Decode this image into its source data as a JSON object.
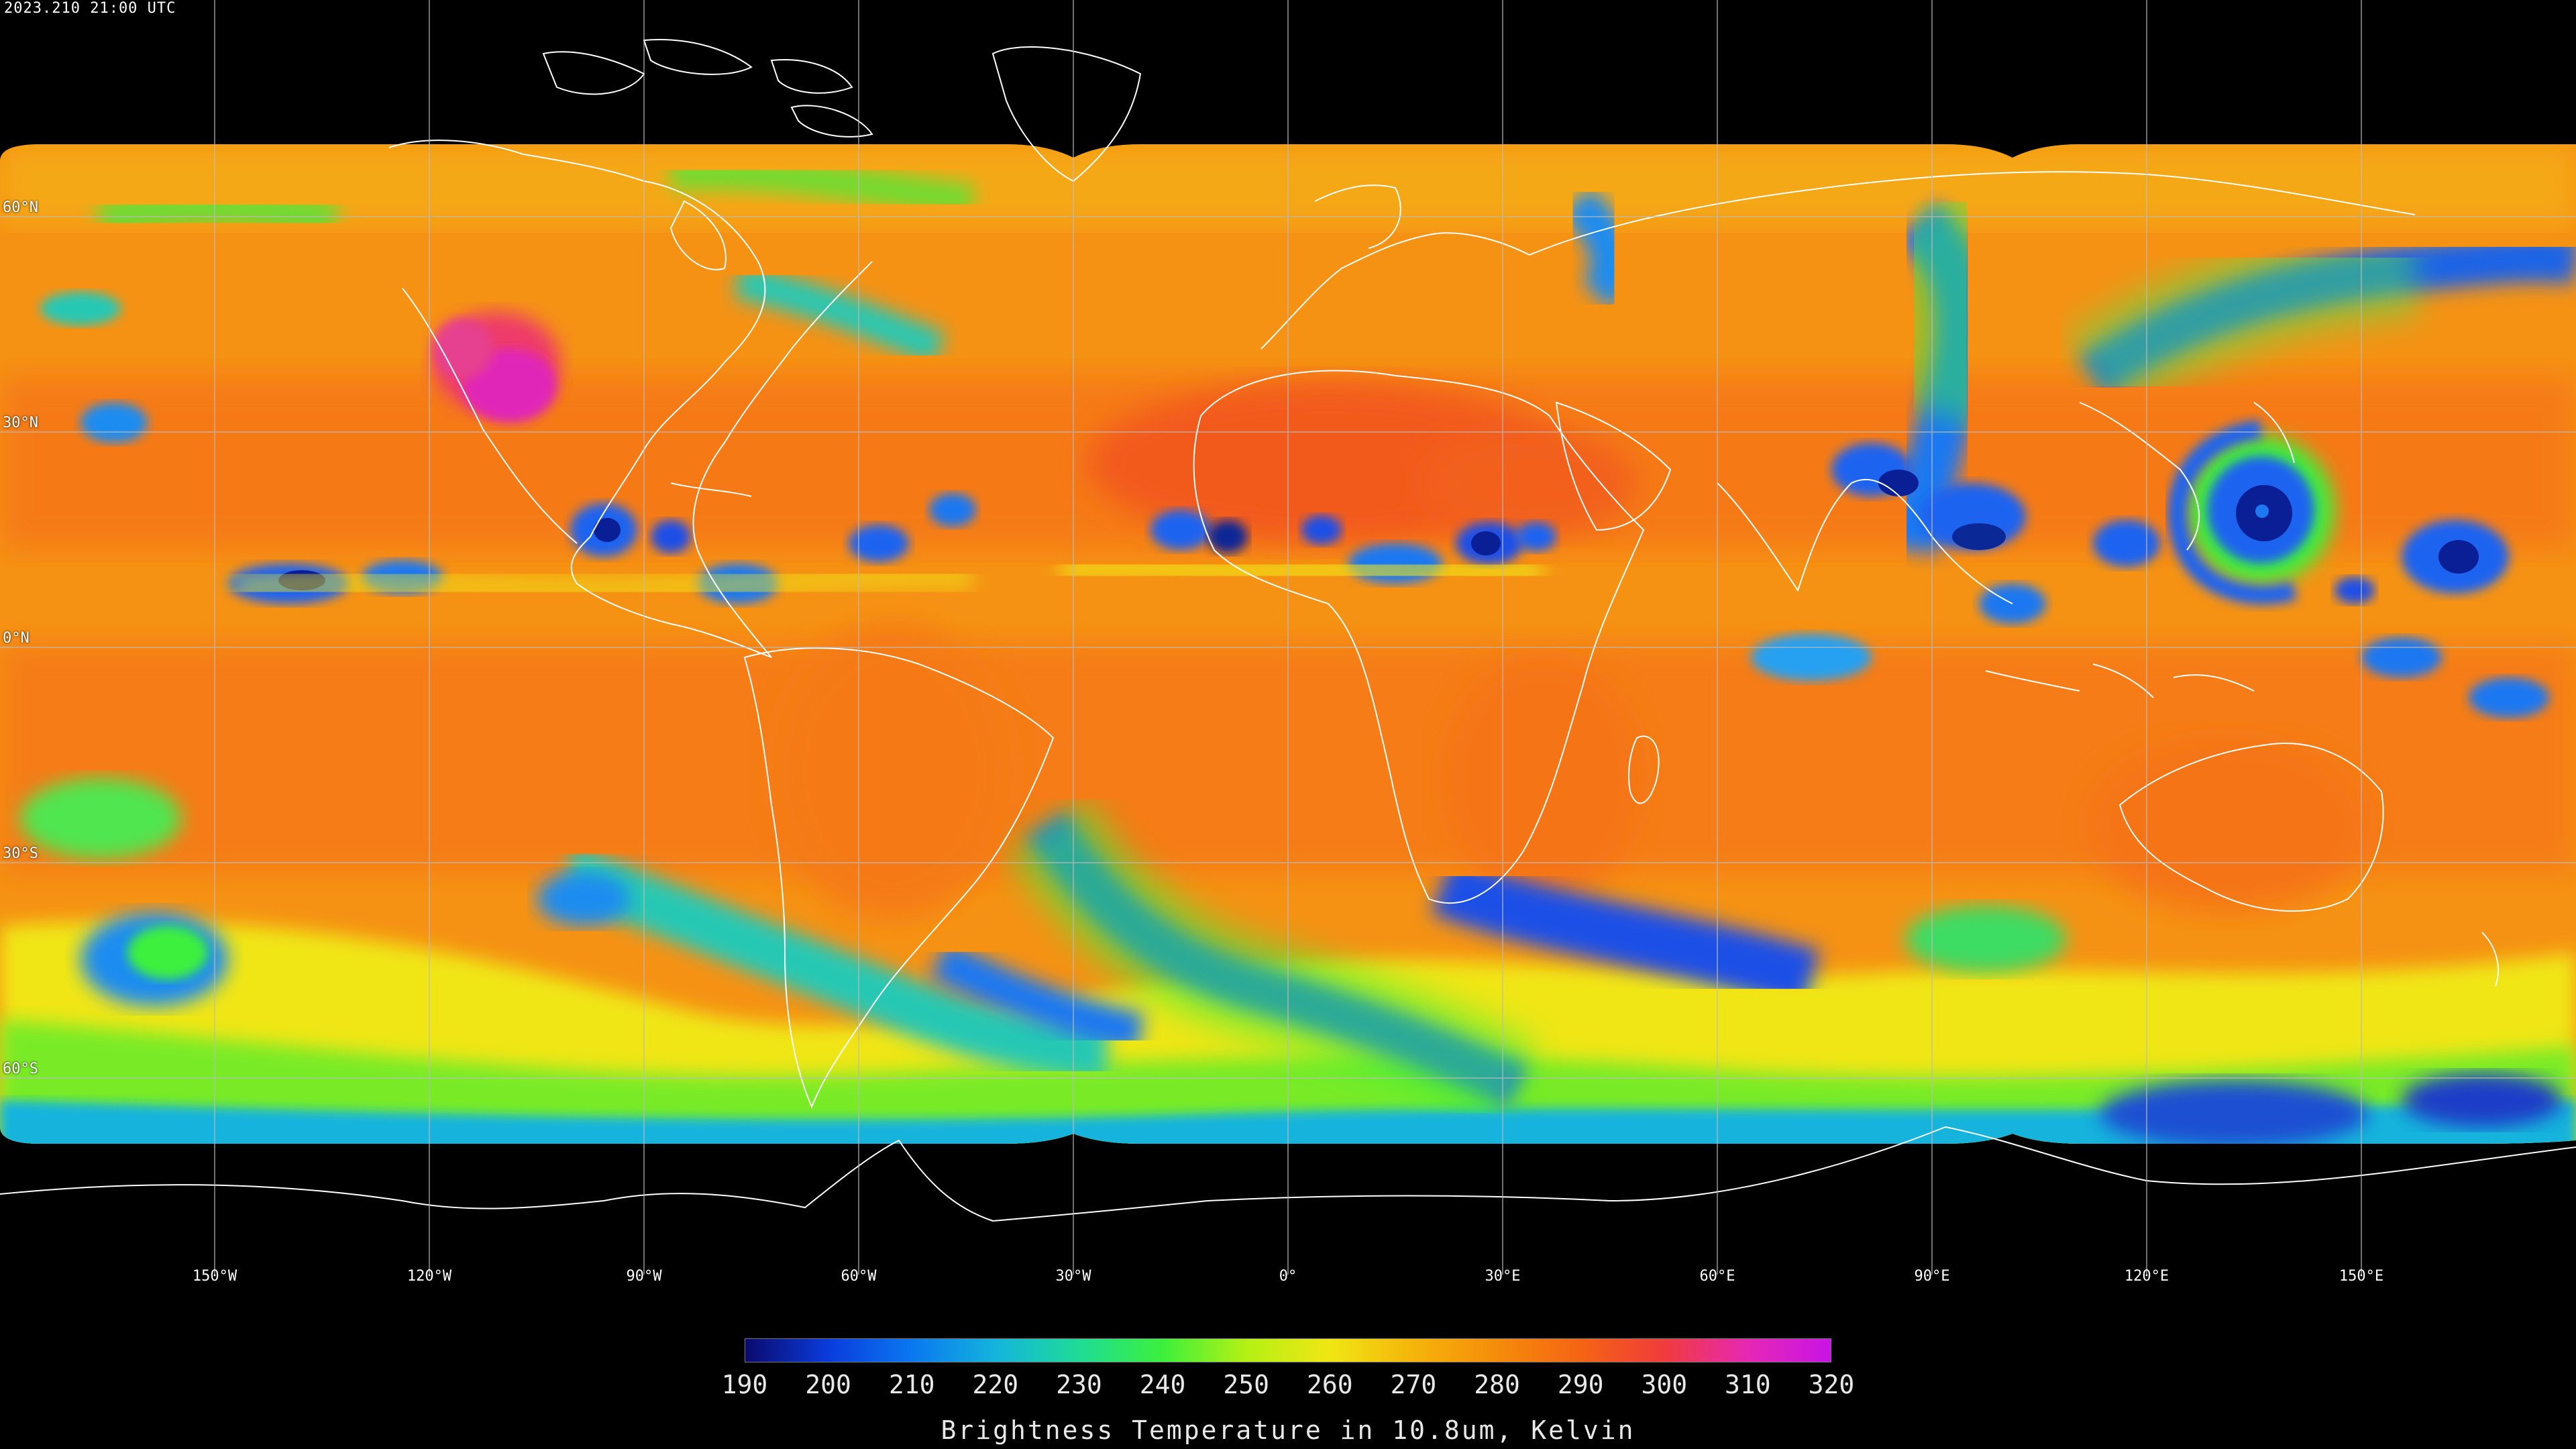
{
  "map": {
    "timestamp": "2023.210 21:00 UTC",
    "projection": "equirectangular",
    "lat_labels": [
      {
        "lat": 60,
        "text": "60°N"
      },
      {
        "lat": 30,
        "text": "30°N"
      },
      {
        "lat": 0,
        "text": "0°N"
      },
      {
        "lat": -30,
        "text": "30°S"
      },
      {
        "lat": -60,
        "text": "60°S"
      }
    ],
    "lon_labels": [
      {
        "lon": -150,
        "text": "150°W"
      },
      {
        "lon": -120,
        "text": "120°W"
      },
      {
        "lon": -90,
        "text": "90°W"
      },
      {
        "lon": -60,
        "text": "60°W"
      },
      {
        "lon": -30,
        "text": "30°W"
      },
      {
        "lon": 0,
        "text": "0°"
      },
      {
        "lon": 30,
        "text": "30°E"
      },
      {
        "lon": 60,
        "text": "60°E"
      },
      {
        "lon": 90,
        "text": "90°E"
      },
      {
        "lon": 120,
        "text": "120°E"
      },
      {
        "lon": 150,
        "text": "150°E"
      }
    ],
    "background_color": "#000000",
    "grid_color": "#bbbbbb",
    "coastline_color": "#ffffff"
  },
  "colorbar": {
    "title": "Brightness Temperature in 10.8um, Kelvin",
    "min": 190,
    "max": 320,
    "ticks": [
      "190",
      "200",
      "210",
      "220",
      "230",
      "240",
      "250",
      "260",
      "270",
      "280",
      "290",
      "300",
      "310",
      "320"
    ],
    "colors": [
      "#0a0a6e",
      "#0a3cdc",
      "#0a78f0",
      "#14b4dc",
      "#1edc96",
      "#3cf03c",
      "#b4f014",
      "#f0e614",
      "#f5b40a",
      "#f58c0a",
      "#f56414",
      "#f03c3c",
      "#e628b4",
      "#c814e6"
    ]
  },
  "features": {
    "colors": {
      "warm_ocean": "#f58c14",
      "hot_land": "#f56e1e",
      "cloud_mid": "#f0e614",
      "cloud_cool": "#3cf03c",
      "cloud_cold": "#1478f0",
      "cloud_deep": "#0a1e96",
      "hot_spot": "#e628b4"
    }
  }
}
